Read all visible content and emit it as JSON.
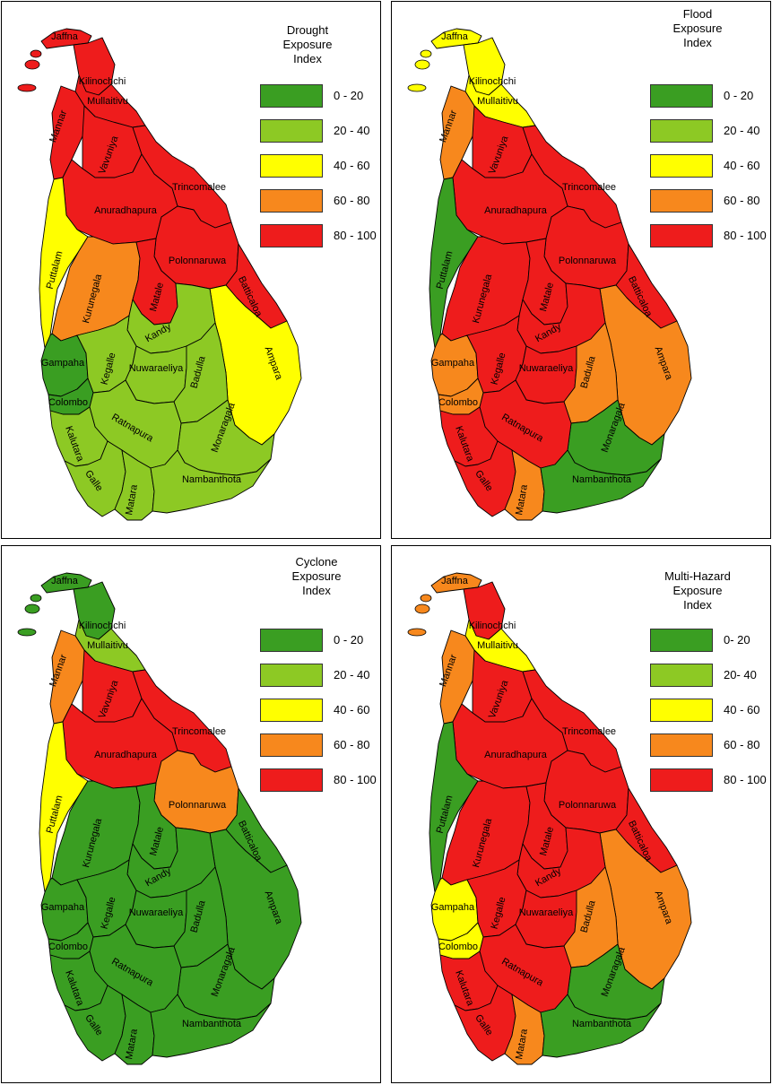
{
  "colors": {
    "dark_green": "#3a9e22",
    "light_green": "#8dc924",
    "yellow": "#ffff00",
    "orange": "#f7881d",
    "red": "#ee1c1c"
  },
  "legend_ranges_a": [
    "0 - 20",
    "20 - 40",
    "40 - 60",
    "60 - 80",
    "80 - 100"
  ],
  "legend_ranges_b": [
    "0- 20",
    "20- 40",
    "40 - 60",
    "60 - 80",
    "80 - 100"
  ],
  "districts": [
    "Jaffna",
    "Kilinochchi",
    "Mullaitivu",
    "Mannar",
    "Vavuniya",
    "Trincomalee",
    "Anuradhapura",
    "Puttalam",
    "Polonnaruwa",
    "Kurunegala",
    "Matale",
    "Batticaloa",
    "Ampara",
    "Kandy",
    "Gampaha",
    "Kegalle",
    "Nuwaraeliya",
    "Badulla",
    "Colombo",
    "Monaragala",
    "Ratnapura",
    "Kalutara",
    "Galle",
    "Matara",
    "Nambanthota"
  ],
  "maps": [
    {
      "title_lines": [
        "Drought",
        "Exposure",
        "Index"
      ],
      "legend": "a",
      "levels": {
        "Jaffna": 4,
        "Kilinochchi": 4,
        "Mullaitivu": 4,
        "Mannar": 4,
        "Vavuniya": 4,
        "Trincomalee": 4,
        "Anuradhapura": 4,
        "Puttalam": 2,
        "Polonnaruwa": 4,
        "Kurunegala": 3,
        "Matale": 4,
        "Batticaloa": 4,
        "Ampara": 2,
        "Kandy": 1,
        "Gampaha": 0,
        "Kegalle": 1,
        "Nuwaraeliya": 1,
        "Badulla": 1,
        "Colombo": 0,
        "Monaragala": 1,
        "Ratnapura": 1,
        "Kalutara": 1,
        "Galle": 1,
        "Matara": 1,
        "Nambanthota": 1
      }
    },
    {
      "title_lines": [
        "Flood",
        "Exposure",
        "Index"
      ],
      "legend": "a",
      "levels": {
        "Jaffna": 2,
        "Kilinochchi": 2,
        "Mullaitivu": 2,
        "Mannar": 3,
        "Vavuniya": 4,
        "Trincomalee": 4,
        "Anuradhapura": 4,
        "Puttalam": 0,
        "Polonnaruwa": 4,
        "Kurunegala": 4,
        "Matale": 4,
        "Batticaloa": 4,
        "Ampara": 3,
        "Kandy": 4,
        "Gampaha": 3,
        "Kegalle": 4,
        "Nuwaraeliya": 4,
        "Badulla": 3,
        "Colombo": 3,
        "Monaragala": 0,
        "Ratnapura": 4,
        "Kalutara": 4,
        "Galle": 4,
        "Matara": 3,
        "Nambanthota": 0
      }
    },
    {
      "title_lines": [
        "Cyclone",
        "Exposure",
        "Index"
      ],
      "legend": "a",
      "levels": {
        "Jaffna": 0,
        "Kilinochchi": 0,
        "Mullaitivu": 1,
        "Mannar": 3,
        "Vavuniya": 4,
        "Trincomalee": 4,
        "Anuradhapura": 4,
        "Puttalam": 2,
        "Polonnaruwa": 3,
        "Kurunegala": 0,
        "Matale": 0,
        "Batticaloa": 0,
        "Ampara": 0,
        "Kandy": 0,
        "Gampaha": 0,
        "Kegalle": 0,
        "Nuwaraeliya": 0,
        "Badulla": 0,
        "Colombo": 0,
        "Monaragala": 0,
        "Ratnapura": 0,
        "Kalutara": 0,
        "Galle": 0,
        "Matara": 0,
        "Nambanthota": 0
      }
    },
    {
      "title_lines": [
        "Multi-Hazard",
        "Exposure",
        "Index"
      ],
      "legend": "b",
      "levels": {
        "Jaffna": 3,
        "Kilinochchi": 4,
        "Mullaitivu": 2,
        "Mannar": 3,
        "Vavuniya": 4,
        "Trincomalee": 4,
        "Anuradhapura": 4,
        "Puttalam": 0,
        "Polonnaruwa": 4,
        "Kurunegala": 4,
        "Matale": 4,
        "Batticaloa": 4,
        "Ampara": 3,
        "Kandy": 4,
        "Gampaha": 2,
        "Kegalle": 4,
        "Nuwaraeliya": 4,
        "Badulla": 3,
        "Colombo": 2,
        "Monaragala": 0,
        "Ratnapura": 4,
        "Kalutara": 4,
        "Galle": 4,
        "Matara": 3,
        "Nambanthota": 0
      }
    }
  ]
}
